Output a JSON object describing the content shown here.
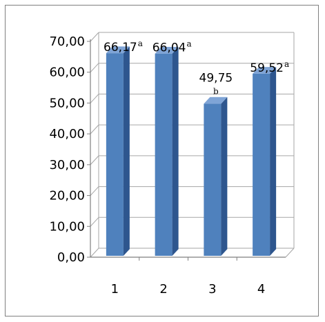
{
  "chart_data": {
    "type": "bar",
    "style": "3d-column",
    "categories": [
      "1",
      "2",
      "3",
      "4"
    ],
    "values": [
      66.17,
      66.04,
      49.75,
      59.52
    ],
    "data_labels": [
      "66,17",
      "66,04",
      "49,75",
      "59,52"
    ],
    "significance_letters": [
      "a",
      "a",
      "b",
      "a"
    ],
    "ylim": [
      0,
      70
    ],
    "yticks": [
      "0,00",
      "10,00",
      "20,00",
      "30,00",
      "40,00",
      "50,00",
      "60,00",
      "70,00"
    ],
    "grid": true,
    "legend": "none",
    "title": "",
    "xlabel": "",
    "ylabel": "",
    "colors": {
      "bar_front": "#4F81BD",
      "bar_side": "#2E568E",
      "bar_top": "#7FA4D6",
      "grid": "#A6A6A6"
    }
  }
}
